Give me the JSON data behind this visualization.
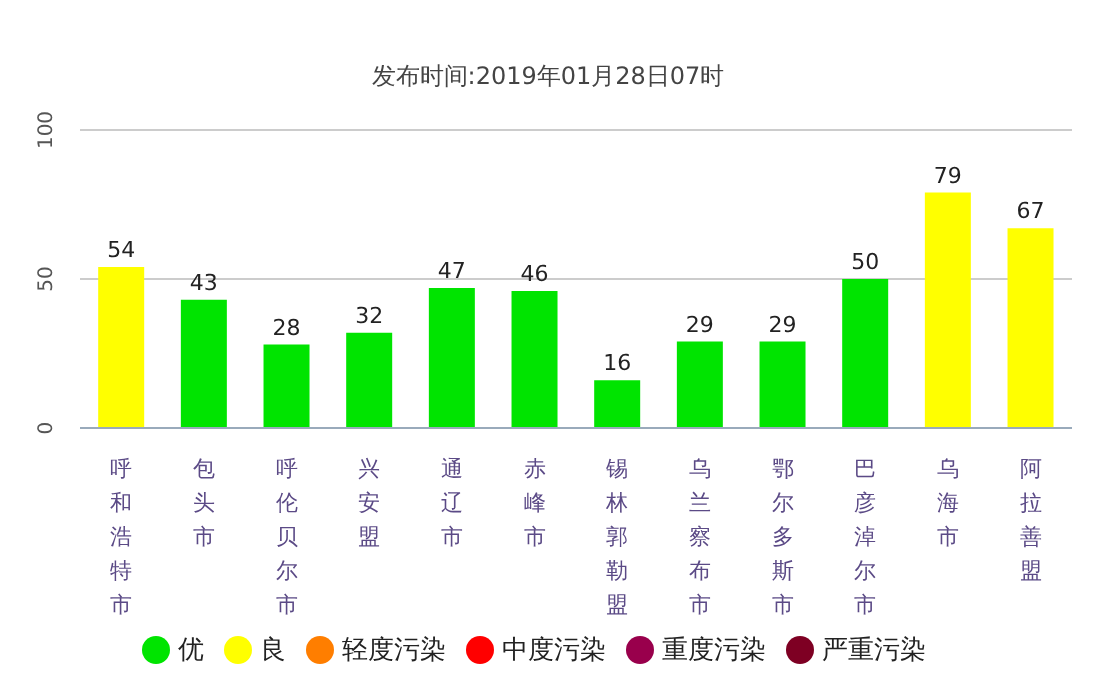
{
  "chart_data": {
    "type": "bar",
    "title": "发布时间:2019年01月28日07时",
    "categories": [
      "呼和浩特市",
      "包头市",
      "呼伦贝尔市",
      "兴安盟",
      "通辽市",
      "赤峰市",
      "锡林郭勒盟",
      "乌兰察布市",
      "鄂尔多斯市",
      "巴彦淖尔市",
      "乌海市",
      "阿拉善盟"
    ],
    "series": [
      {
        "name": "优",
        "color": "#00e400",
        "values": [
          null,
          43,
          28,
          32,
          47,
          46,
          16,
          29,
          29,
          50,
          null,
          null
        ]
      },
      {
        "name": "良",
        "color": "#ffff00",
        "values": [
          54,
          null,
          null,
          null,
          null,
          null,
          null,
          null,
          null,
          null,
          79,
          67
        ]
      },
      {
        "name": "轻度污染",
        "color": "#ff7e00",
        "values": [
          null,
          null,
          null,
          null,
          null,
          null,
          null,
          null,
          null,
          null,
          null,
          null
        ]
      },
      {
        "name": "中度污染",
        "color": "#ff0000",
        "values": [
          null,
          null,
          null,
          null,
          null,
          null,
          null,
          null,
          null,
          null,
          null,
          null
        ]
      },
      {
        "name": "重度污染",
        "color": "#99004c",
        "values": [
          null,
          null,
          null,
          null,
          null,
          null,
          null,
          null,
          null,
          null,
          null,
          null
        ]
      },
      {
        "name": "严重污染",
        "color": "#7e0023",
        "values": [
          null,
          null,
          null,
          null,
          null,
          null,
          null,
          null,
          null,
          null,
          null,
          null
        ]
      }
    ],
    "stacked": true,
    "data_labels": true,
    "ylim": [
      0,
      100
    ],
    "yticks": [
      0,
      50,
      100
    ],
    "grid": "y",
    "legend": "bottom"
  }
}
